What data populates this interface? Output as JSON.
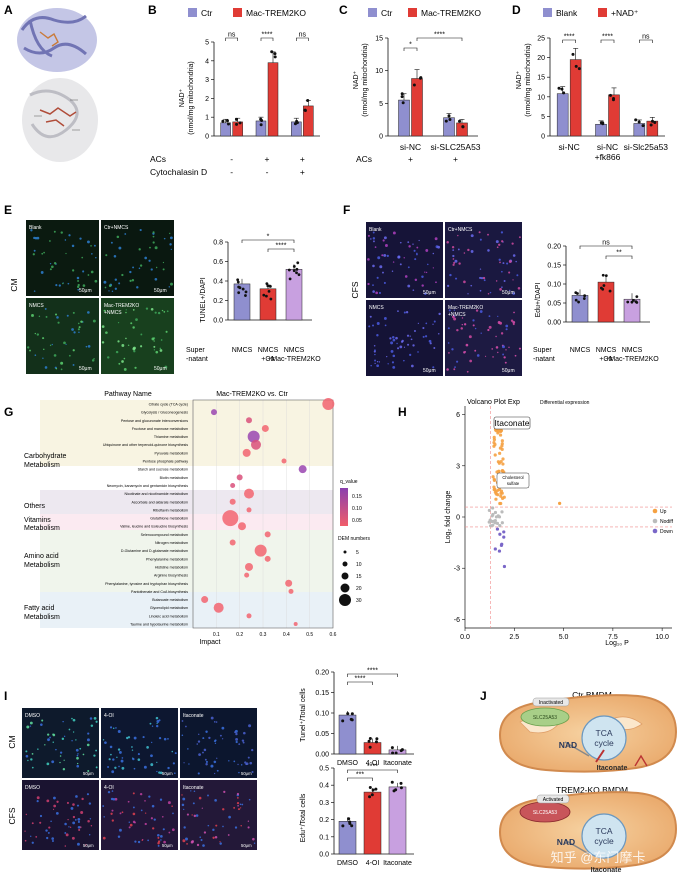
{
  "colors": {
    "ctr": "#8f8fcf",
    "mac": "#e03b35",
    "blank": "#8f8fcf",
    "nad": "#e03b35",
    "lilac": "#c8a0e0",
    "up": "#f5a142",
    "nodiff": "#bbbbbb",
    "down": "#7a67c8",
    "q_high": "#8a3fae",
    "q_low": "#f15d6a"
  },
  "panels": {
    "A": "A",
    "B": "B",
    "C": "C",
    "D": "D",
    "E": "E",
    "F": "F",
    "G": "G",
    "H": "H",
    "I": "I",
    "J": "J"
  },
  "B": {
    "legend": [
      "Ctr",
      "Mac-TREM2KO"
    ],
    "ylabel": "NAD⁺",
    "yunit": "(nmol/mg mitochondria)",
    "ticks": [
      "0",
      "1",
      "2",
      "3",
      "4",
      "5"
    ],
    "sig": [
      "ns",
      "****",
      "ns"
    ],
    "row1_label": "ACs",
    "row1": [
      "-",
      "-",
      "+",
      "+",
      "+",
      "+"
    ],
    "row2_label": "Cytochalasin D",
    "row2": [
      "-",
      "-",
      "-",
      "-",
      "+",
      "+"
    ],
    "chart_data": {
      "type": "bar",
      "categories": [
        "-/-",
        "AC",
        "AC+CytoD"
      ],
      "series": [
        {
          "name": "Ctr",
          "values": [
            0.7,
            0.8,
            0.75
          ]
        },
        {
          "name": "Mac-TREM2KO",
          "values": [
            0.75,
            3.9,
            1.6
          ]
        }
      ],
      "ylim": [
        0,
        5
      ]
    }
  },
  "C": {
    "legend": [
      "Ctr",
      "Mac-TREM2KO"
    ],
    "ylabel": "NAD⁺",
    "yunit": "(nmol/mg mitochondria)",
    "ticks": [
      "0",
      "5",
      "10",
      "15"
    ],
    "sig": [
      "*",
      "****"
    ],
    "cats": [
      "si-NC",
      "si-SLC25A53"
    ],
    "row_label": "ACs",
    "row": [
      "+",
      "+"
    ],
    "chart_data": {
      "type": "bar",
      "categories": [
        "si-NC",
        "si-SLC25A53"
      ],
      "series": [
        {
          "name": "Ctr",
          "values": [
            5.5,
            2.8
          ]
        },
        {
          "name": "Mac-TREM2KO",
          "values": [
            8.8,
            2.0
          ]
        }
      ],
      "ylim": [
        0,
        15
      ]
    }
  },
  "D": {
    "legend": [
      "Blank",
      "+NAD⁺"
    ],
    "ylabel": "NAD⁺",
    "yunit": "(nmol/mg mitochondria)",
    "ticks": [
      "0",
      "5",
      "10",
      "15",
      "20",
      "25"
    ],
    "sig": [
      "****",
      "****",
      "ns"
    ],
    "cats": [
      "si-NC",
      "si-NC",
      "si-Slc25a53"
    ],
    "sub": [
      "",
      "+fk866",
      ""
    ],
    "chart_data": {
      "type": "bar",
      "categories": [
        "si-NC",
        "si-NC+fk866",
        "si-Slc25a53"
      ],
      "series": [
        {
          "name": "Blank",
          "values": [
            10.8,
            3.0,
            3.2
          ]
        },
        {
          "name": "+NAD⁺",
          "values": [
            19.5,
            10.5,
            3.8
          ]
        }
      ],
      "ylim": [
        0,
        25
      ]
    }
  },
  "E": {
    "row_label": "CM",
    "imgs": [
      "Blank",
      "Ctr+NMCS",
      "NMCS",
      "Mac-TREM2KO"
    ],
    "img4_line2": "+NMCS",
    "scale": "50μm",
    "ylabel": "TUNEL+/DAPI",
    "ticks": [
      "0.0",
      "0.2",
      "0.4",
      "0.6",
      "0.8"
    ],
    "sig": [
      "*",
      "****"
    ],
    "super": "Super",
    "natant": "-natant",
    "cats": [
      "NMCS",
      "NMCS",
      "NMCS"
    ],
    "sub": [
      "",
      "+Ctr",
      "+Mac-TREM2KO"
    ],
    "chart_data": {
      "type": "bar",
      "categories": [
        "NMCS",
        "NMCS+Ctr",
        "NMCS+Mac-TREM2KO"
      ],
      "values": [
        0.37,
        0.32,
        0.52
      ],
      "ylim": [
        0,
        0.8
      ]
    }
  },
  "F": {
    "row_label": "CFS",
    "imgs": [
      "Blank",
      "Ctr+NMCS",
      "NMCS",
      "Mac-TREM2KO"
    ],
    "img4_line2": "+NMCS",
    "scale": "50μm",
    "ylabel": "Edu+/DAPI",
    "ticks": [
      "0.00",
      "0.05",
      "0.10",
      "0.15",
      "0.20"
    ],
    "sig": [
      "ns",
      "**"
    ],
    "super": "Super",
    "natant": "-natant",
    "cats": [
      "NMCS",
      "NMCS",
      "NMCS"
    ],
    "sub": [
      "",
      "+Ctr",
      "+Mac-TREM2KO"
    ],
    "chart_data": {
      "type": "bar",
      "categories": [
        "NMCS",
        "NMCS+Ctr",
        "NMCS+Mac-TREM2KO"
      ],
      "values": [
        0.07,
        0.105,
        0.06
      ],
      "ylim": [
        0,
        0.2
      ]
    }
  },
  "G": {
    "header_left": "Pathway Name",
    "header_right": "Mac-TREM2KO vs. Ctr",
    "xlabel": "Impact",
    "xticks": [
      "0.1",
      "0.2",
      "0.3",
      "0.4",
      "0.5",
      "0.6"
    ],
    "groups": [
      "Carbohydrate",
      "Metabolism",
      "Others",
      "Vitamins",
      "Metabolism",
      "Amino acid",
      "Metabolism",
      "Fatty acid",
      "Metabolism"
    ],
    "pathways": [
      "Citrate cycle (TCA cycle)",
      "Glycolysis / Gluconeogenesis",
      "Pentose and glucuronate interconversions",
      "Fructose and mannose metabolism",
      "Thiamine metabolism",
      "Ubiquinone and other terpenoid-quinone biosynthesis",
      "Pyruvate metabolism",
      "Pentose phosphate pathway",
      "Starch and sucrose metabolism",
      "Biotin metabolism",
      "Neomycin, kanamycin and gentamicin biosynthesis",
      "Nicotinate and nicotinamide metabolism",
      "Ascorbate and aldarate metabolism",
      "Riboflavin metabolism",
      "Glutathione metabolism",
      "Valine, leucine and isoleucine biosynthesis",
      "Selenocompound metabolism",
      "Nitrogen metabolism",
      "D-Glutamine and D-glutamate metabolism",
      "Phenylalanine metabolism",
      "Histidine metabolism",
      "Arginine biosynthesis",
      "Phenylalanine, tyrosine and tryptophan biosynthesis",
      "Pantothenate and CoA biosynthesis",
      "Butanoate metabolism",
      "Glycerolipid metabolism",
      "Linoleic acid metabolism",
      "Taurine and hypotaurine metabolism"
    ],
    "legend_q": "q_value",
    "qticks": [
      "0.15",
      "0.10",
      "0.05"
    ],
    "legend_n": "DEM numbers",
    "nticks": [
      "5",
      "10",
      "15",
      "20",
      "30"
    ],
    "chart_data": {
      "type": "scatter",
      "x": [
        0.58,
        0.09,
        0.24,
        0.31,
        0.26,
        0.27,
        0.23,
        0.39,
        0.47,
        0.2,
        0.17,
        0.24,
        0.17,
        0.24,
        0.16,
        0.21,
        0.32,
        0.17,
        0.29,
        0.32,
        0.24,
        0.23,
        0.41,
        0.42,
        0.05,
        0.11,
        0.24,
        0.44
      ],
      "y": [
        27,
        26,
        25,
        24,
        23,
        22,
        21,
        20,
        19,
        18,
        17,
        16,
        15,
        14,
        13,
        12,
        11,
        10,
        9,
        8,
        7,
        6,
        5,
        4,
        3,
        2,
        1,
        0
      ],
      "xlim": [
        0,
        0.6
      ]
    }
  },
  "H": {
    "title": "Volcano Plot Exp",
    "subtitle": "Differential expression",
    "ylabel": "Log₂ fold change",
    "xlabel": "Log₁₀ P",
    "yticks": [
      "6",
      "3",
      "0",
      "-3",
      "-6"
    ],
    "xticks": [
      "0.0",
      "2.5",
      "5.0",
      "7.5",
      "10.0"
    ],
    "label1": "Itaconate",
    "label2": "Cholesterol",
    "label2b": "sulfate",
    "legend": [
      "Up",
      "Nodiff",
      "Down"
    ],
    "chart_data": {
      "type": "scatter",
      "xlim": [
        0,
        10.5
      ],
      "ylim": [
        -6.5,
        6.5
      ],
      "labels": [
        "Itaconate",
        "Cholesterol sulfate"
      ]
    }
  },
  "I": {
    "rows": [
      "CM",
      "CFS"
    ],
    "imgs": [
      "DMSO",
      "4-OI",
      "Itaconate"
    ],
    "scale": "50μm",
    "ylabel1": "Tunel⁺/Total cells",
    "ylabel2": "Edu⁺/Total cells",
    "ticks1": [
      "0.00",
      "0.05",
      "0.10",
      "0.15",
      "0.20"
    ],
    "ticks2": [
      "0.0",
      "0.1",
      "0.2",
      "0.3",
      "0.4",
      "0.5"
    ],
    "sig1": [
      "****",
      "****"
    ],
    "sig2": [
      "****",
      "***"
    ],
    "cats": [
      "DMSO",
      "4-OI",
      "Itaconate"
    ],
    "chart_data": [
      {
        "type": "bar",
        "categories": [
          "DMSO",
          "4-OI",
          "Itaconate"
        ],
        "values": [
          0.095,
          0.028,
          0.01
        ],
        "ylim": [
          0,
          0.2
        ]
      },
      {
        "type": "bar",
        "categories": [
          "DMSO",
          "4-OI",
          "Itaconate"
        ],
        "values": [
          0.19,
          0.36,
          0.39
        ],
        "ylim": [
          0,
          0.5
        ]
      }
    ]
  },
  "J": {
    "title1": "Ctr BMDM",
    "title2": "TREM2-KO BMDM",
    "state1": "Inactivated",
    "state2": "Activated",
    "slc": "SLC25A53",
    "nad": "NAD",
    "tca1": "TCA",
    "tca2": "cycle",
    "ita": "Itaconate",
    "watermark": "知乎 @东门摩卡"
  }
}
